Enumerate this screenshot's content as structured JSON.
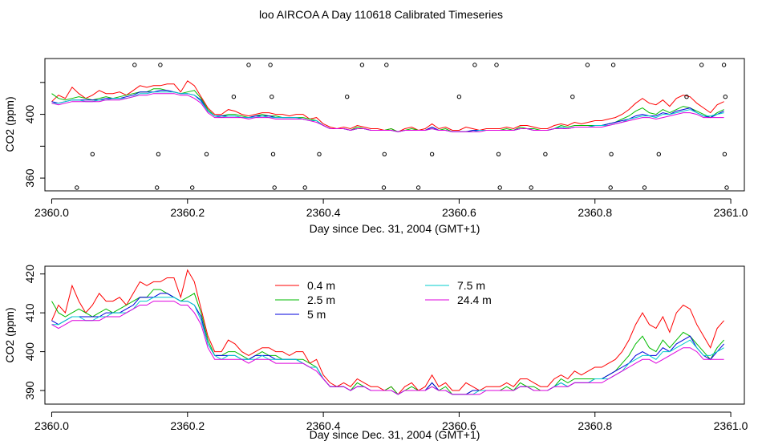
{
  "title": "loo AIRCOA A  Day 110618  Calibrated Timeseries",
  "chart_data": [
    {
      "type": "scatter",
      "xlabel": "Day since Dec. 31, 2004 (GMT+1)",
      "ylabel": "CO2 (ppm)",
      "xlim": [
        2359.99,
        2361.02
      ],
      "ylim": [
        352,
        435
      ],
      "xticks": [
        2360.0,
        2360.2,
        2360.4,
        2360.6,
        2360.8,
        2361.0
      ],
      "xtick_labels": [
        "2360.0",
        "2360.2",
        "2360.4",
        "2360.6",
        "2360.8",
        "2361.0"
      ],
      "yticks": [
        360,
        400
      ],
      "ytick_labels": [
        "360",
        "400"
      ],
      "marker_levels": [
        431,
        411,
        375,
        354
      ],
      "markers": [
        {
          "x": 2360.037,
          "y": 354
        },
        {
          "x": 2360.06,
          "y": 375
        },
        {
          "x": 2360.122,
          "y": 431
        },
        {
          "x": 2360.155,
          "y": 354
        },
        {
          "x": 2360.157,
          "y": 375
        },
        {
          "x": 2360.16,
          "y": 431
        },
        {
          "x": 2360.207,
          "y": 354
        },
        {
          "x": 2360.228,
          "y": 375
        },
        {
          "x": 2360.268,
          "y": 411
        },
        {
          "x": 2360.29,
          "y": 431
        },
        {
          "x": 2360.322,
          "y": 431
        },
        {
          "x": 2360.324,
          "y": 411
        },
        {
          "x": 2360.326,
          "y": 375
        },
        {
          "x": 2360.328,
          "y": 354
        },
        {
          "x": 2360.373,
          "y": 354
        },
        {
          "x": 2360.394,
          "y": 375
        },
        {
          "x": 2360.435,
          "y": 411
        },
        {
          "x": 2360.457,
          "y": 431
        },
        {
          "x": 2360.489,
          "y": 354
        },
        {
          "x": 2360.49,
          "y": 375
        },
        {
          "x": 2360.493,
          "y": 431
        },
        {
          "x": 2360.54,
          "y": 354
        },
        {
          "x": 2360.56,
          "y": 375
        },
        {
          "x": 2360.6,
          "y": 411
        },
        {
          "x": 2360.623,
          "y": 431
        },
        {
          "x": 2360.655,
          "y": 431
        },
        {
          "x": 2360.658,
          "y": 375
        },
        {
          "x": 2360.66,
          "y": 354
        },
        {
          "x": 2360.706,
          "y": 354
        },
        {
          "x": 2360.727,
          "y": 375
        },
        {
          "x": 2360.767,
          "y": 411
        },
        {
          "x": 2360.789,
          "y": 431
        },
        {
          "x": 2360.823,
          "y": 354
        },
        {
          "x": 2360.824,
          "y": 375
        },
        {
          "x": 2360.827,
          "y": 431
        },
        {
          "x": 2360.873,
          "y": 354
        },
        {
          "x": 2360.894,
          "y": 375
        },
        {
          "x": 2360.935,
          "y": 411
        },
        {
          "x": 2360.957,
          "y": 431
        },
        {
          "x": 2360.99,
          "y": 431
        },
        {
          "x": 2360.991,
          "y": 375
        },
        {
          "x": 2360.992,
          "y": 411
        },
        {
          "x": 2360.994,
          "y": 354
        }
      ],
      "x": [
        2360.0,
        2360.01,
        2360.02,
        2360.03,
        2360.04,
        2360.05,
        2360.06,
        2360.07,
        2360.08,
        2360.09,
        2360.1,
        2360.11,
        2360.12,
        2360.13,
        2360.14,
        2360.15,
        2360.16,
        2360.17,
        2360.18,
        2360.19,
        2360.2,
        2360.21,
        2360.22,
        2360.23,
        2360.24,
        2360.25,
        2360.26,
        2360.27,
        2360.28,
        2360.29,
        2360.3,
        2360.31,
        2360.32,
        2360.33,
        2360.34,
        2360.35,
        2360.36,
        2360.37,
        2360.38,
        2360.39,
        2360.4,
        2360.41,
        2360.42,
        2360.43,
        2360.44,
        2360.45,
        2360.46,
        2360.47,
        2360.48,
        2360.49,
        2360.5,
        2360.51,
        2360.52,
        2360.53,
        2360.54,
        2360.55,
        2360.56,
        2360.57,
        2360.58,
        2360.59,
        2360.6,
        2360.61,
        2360.62,
        2360.63,
        2360.64,
        2360.65,
        2360.66,
        2360.67,
        2360.68,
        2360.69,
        2360.7,
        2360.71,
        2360.72,
        2360.73,
        2360.74,
        2360.75,
        2360.76,
        2360.77,
        2360.78,
        2360.79,
        2360.8,
        2360.81,
        2360.82,
        2360.83,
        2360.84,
        2360.85,
        2360.86,
        2360.87,
        2360.88,
        2360.89,
        2360.9,
        2360.91,
        2360.92,
        2360.93,
        2360.94,
        2360.95,
        2360.96,
        2360.97,
        2360.98,
        2360.99
      ],
      "series": [
        {
          "name": "0.4 m",
          "color": "#ff0000",
          "values": [
            408,
            412,
            410,
            417,
            413,
            410,
            412,
            415,
            413,
            413,
            414,
            412,
            415,
            418,
            417,
            418,
            418,
            419,
            419,
            414,
            421,
            418,
            411,
            404,
            400,
            400,
            403,
            402,
            400,
            399,
            400,
            401,
            401,
            400,
            400,
            399,
            400,
            400,
            397,
            398,
            394,
            392,
            391,
            392,
            391,
            393,
            392,
            391,
            391,
            390,
            391,
            389,
            391,
            392,
            390,
            391,
            394,
            391,
            392,
            390,
            390,
            392,
            391,
            390,
            391,
            391,
            391,
            392,
            391,
            393,
            393,
            392,
            391,
            391,
            393,
            394,
            393,
            395,
            394,
            395,
            396,
            396,
            397,
            398,
            400,
            403,
            407,
            410,
            407,
            406,
            409,
            405,
            410,
            412,
            411,
            407,
            404,
            401,
            406,
            408
          ]
        },
        {
          "name": "2.5 m",
          "color": "#00bb00",
          "values": [
            413,
            410,
            409,
            410,
            411,
            410,
            409,
            410,
            411,
            410,
            411,
            412,
            413,
            414,
            414,
            416,
            416,
            415,
            414,
            413,
            414,
            415,
            410,
            403,
            399,
            399,
            400,
            400,
            399,
            398,
            399,
            400,
            399,
            399,
            398,
            398,
            398,
            398,
            397,
            396,
            393,
            391,
            391,
            391,
            390,
            392,
            391,
            390,
            390,
            390,
            391,
            389,
            390,
            391,
            390,
            390,
            392,
            390,
            391,
            389,
            389,
            389,
            390,
            390,
            390,
            390,
            390,
            391,
            390,
            392,
            391,
            391,
            390,
            390,
            391,
            393,
            392,
            393,
            393,
            393,
            393,
            393,
            394,
            395,
            397,
            399,
            402,
            404,
            401,
            400,
            403,
            401,
            403,
            405,
            404,
            402,
            400,
            398,
            401,
            403
          ]
        },
        {
          "name": "5 m",
          "color": "#0000dd",
          "values": [
            408,
            407,
            408,
            409,
            409,
            409,
            409,
            409,
            410,
            410,
            410,
            411,
            412,
            414,
            414,
            414,
            415,
            415,
            414,
            413,
            413,
            412,
            409,
            402,
            399,
            399,
            399,
            399,
            398,
            398,
            399,
            399,
            399,
            398,
            398,
            398,
            398,
            397,
            396,
            396,
            393,
            391,
            391,
            391,
            390,
            391,
            391,
            390,
            390,
            390,
            390,
            389,
            390,
            390,
            390,
            390,
            392,
            390,
            390,
            389,
            389,
            389,
            390,
            390,
            390,
            390,
            390,
            390,
            390,
            391,
            391,
            390,
            390,
            390,
            391,
            392,
            391,
            392,
            392,
            392,
            393,
            393,
            394,
            395,
            396,
            397,
            399,
            400,
            399,
            399,
            401,
            400,
            402,
            403,
            404,
            401,
            399,
            398,
            400,
            402
          ]
        },
        {
          "name": "7.5 m",
          "color": "#00cccc",
          "values": [
            407,
            407,
            408,
            409,
            409,
            408,
            408,
            409,
            409,
            410,
            410,
            410,
            411,
            413,
            413,
            414,
            414,
            414,
            414,
            413,
            413,
            412,
            408,
            402,
            399,
            398,
            399,
            399,
            398,
            398,
            398,
            399,
            398,
            398,
            398,
            398,
            398,
            397,
            396,
            396,
            393,
            391,
            391,
            391,
            390,
            391,
            391,
            390,
            390,
            390,
            390,
            389,
            390,
            390,
            390,
            390,
            391,
            390,
            390,
            389,
            389,
            389,
            389,
            390,
            390,
            390,
            390,
            390,
            390,
            391,
            391,
            390,
            390,
            390,
            391,
            392,
            391,
            392,
            392,
            392,
            393,
            393,
            393,
            394,
            395,
            397,
            398,
            399,
            399,
            398,
            400,
            400,
            401,
            402,
            403,
            401,
            399,
            399,
            400,
            401
          ]
        },
        {
          "name": "24.4 m",
          "color": "#dd00dd",
          "values": [
            407,
            406,
            407,
            408,
            408,
            408,
            408,
            408,
            409,
            409,
            409,
            410,
            411,
            412,
            412,
            413,
            413,
            413,
            413,
            412,
            412,
            410,
            407,
            401,
            398,
            398,
            398,
            398,
            398,
            397,
            398,
            398,
            398,
            397,
            397,
            397,
            397,
            397,
            396,
            395,
            393,
            391,
            391,
            391,
            390,
            391,
            391,
            390,
            390,
            390,
            390,
            389,
            390,
            390,
            390,
            390,
            391,
            390,
            390,
            389,
            389,
            389,
            389,
            389,
            390,
            390,
            390,
            390,
            390,
            391,
            391,
            390,
            390,
            390,
            391,
            391,
            391,
            392,
            392,
            392,
            392,
            392,
            393,
            394,
            395,
            396,
            397,
            398,
            398,
            397,
            398,
            399,
            400,
            401,
            401,
            400,
            398,
            398,
            398,
            398
          ]
        }
      ]
    },
    {
      "type": "line",
      "xlabel": "Day since Dec. 31, 2004 (GMT+1)",
      "ylabel": "CO2 (ppm)",
      "xlim": [
        2359.99,
        2361.02
      ],
      "ylim": [
        386.5,
        422
      ],
      "xticks": [
        2360.0,
        2360.2,
        2360.4,
        2360.6,
        2360.8,
        2361.0
      ],
      "xtick_labels": [
        "2360.0",
        "2360.2",
        "2360.4",
        "2360.6",
        "2360.8",
        "2361.0"
      ],
      "yticks": [
        390,
        400,
        410,
        420
      ],
      "ytick_labels": [
        "390",
        "400",
        "410",
        "420"
      ],
      "legend": [
        "0.4 m",
        "2.5 m",
        "5 m",
        "7.5 m",
        "24.4 m"
      ],
      "legend_placement": "top-center"
    }
  ]
}
